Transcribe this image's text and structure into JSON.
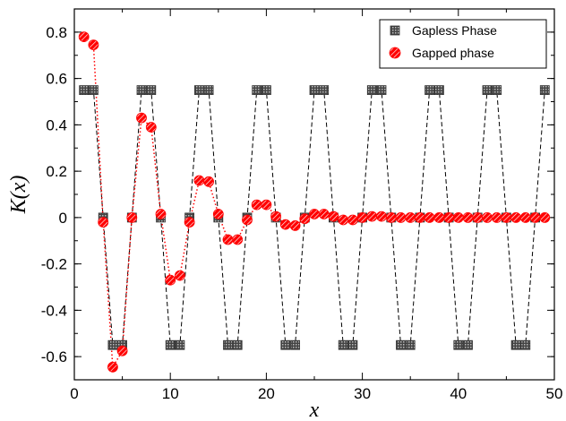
{
  "chart_data": {
    "type": "scatter",
    "title": "",
    "xlabel": "x",
    "ylabel": "K(x)",
    "xlim": [
      0,
      50
    ],
    "ylim": [
      -0.7,
      0.9
    ],
    "xticks": [
      0,
      10,
      20,
      30,
      40,
      50
    ],
    "yticks": [
      -0.6,
      -0.4,
      -0.2,
      0,
      0.2,
      0.4,
      0.6,
      0.8
    ],
    "ytick_labels": [
      "-0.6",
      "-0.4",
      "-0.2",
      "0",
      "0.2",
      "0.4",
      "0.6",
      "0.8"
    ],
    "grid": false,
    "legend_position": "top-right",
    "series": [
      {
        "name": "Gapless Phase",
        "color": "#333333",
        "marker": "square",
        "line": "dashed",
        "x": [
          1,
          2,
          3,
          4,
          5,
          6,
          7,
          8,
          9,
          10,
          11,
          12,
          13,
          14,
          15,
          16,
          17,
          18,
          19,
          20,
          21,
          22,
          23,
          24,
          25,
          26,
          27,
          28,
          29,
          30,
          31,
          32,
          33,
          34,
          35,
          36,
          37,
          38,
          39,
          40,
          41,
          42,
          43,
          44,
          45,
          46,
          47,
          48,
          49
        ],
        "y": [
          0.55,
          0.55,
          0,
          -0.55,
          -0.55,
          0,
          0.55,
          0.55,
          0,
          -0.55,
          -0.55,
          0,
          0.55,
          0.55,
          0,
          -0.55,
          -0.55,
          0,
          0.55,
          0.55,
          0,
          -0.55,
          -0.55,
          0,
          0.55,
          0.55,
          0,
          -0.55,
          -0.55,
          0,
          0.55,
          0.55,
          0,
          -0.55,
          -0.55,
          0,
          0.55,
          0.55,
          0,
          -0.55,
          -0.55,
          0,
          0.55,
          0.55,
          0,
          -0.55,
          -0.55,
          0,
          0.55
        ]
      },
      {
        "name": "Gapped phase",
        "color": "#ff0000",
        "marker": "circle-hatched",
        "line": "dotted",
        "x": [
          1,
          2,
          3,
          4,
          5,
          6,
          7,
          8,
          9,
          10,
          11,
          12,
          13,
          14,
          15,
          16,
          17,
          18,
          19,
          20,
          21,
          22,
          23,
          24,
          25,
          26,
          27,
          28,
          29,
          30,
          31,
          32,
          33,
          34,
          35,
          36,
          37,
          38,
          39,
          40,
          41,
          42,
          43,
          44,
          45,
          46,
          47,
          48,
          49
        ],
        "y": [
          0.78,
          0.745,
          -0.02,
          -0.645,
          -0.575,
          0,
          0.43,
          0.39,
          0.015,
          -0.27,
          -0.25,
          -0.02,
          0.16,
          0.155,
          0.015,
          -0.095,
          -0.095,
          -0.01,
          0.055,
          0.055,
          0.005,
          -0.03,
          -0.035,
          -0.005,
          0.015,
          0.015,
          0.005,
          -0.01,
          -0.01,
          0,
          0.005,
          0.005,
          0,
          0,
          0,
          0,
          0,
          0,
          0,
          0,
          0,
          0,
          0,
          0,
          0,
          0,
          0,
          0,
          0
        ]
      }
    ]
  }
}
